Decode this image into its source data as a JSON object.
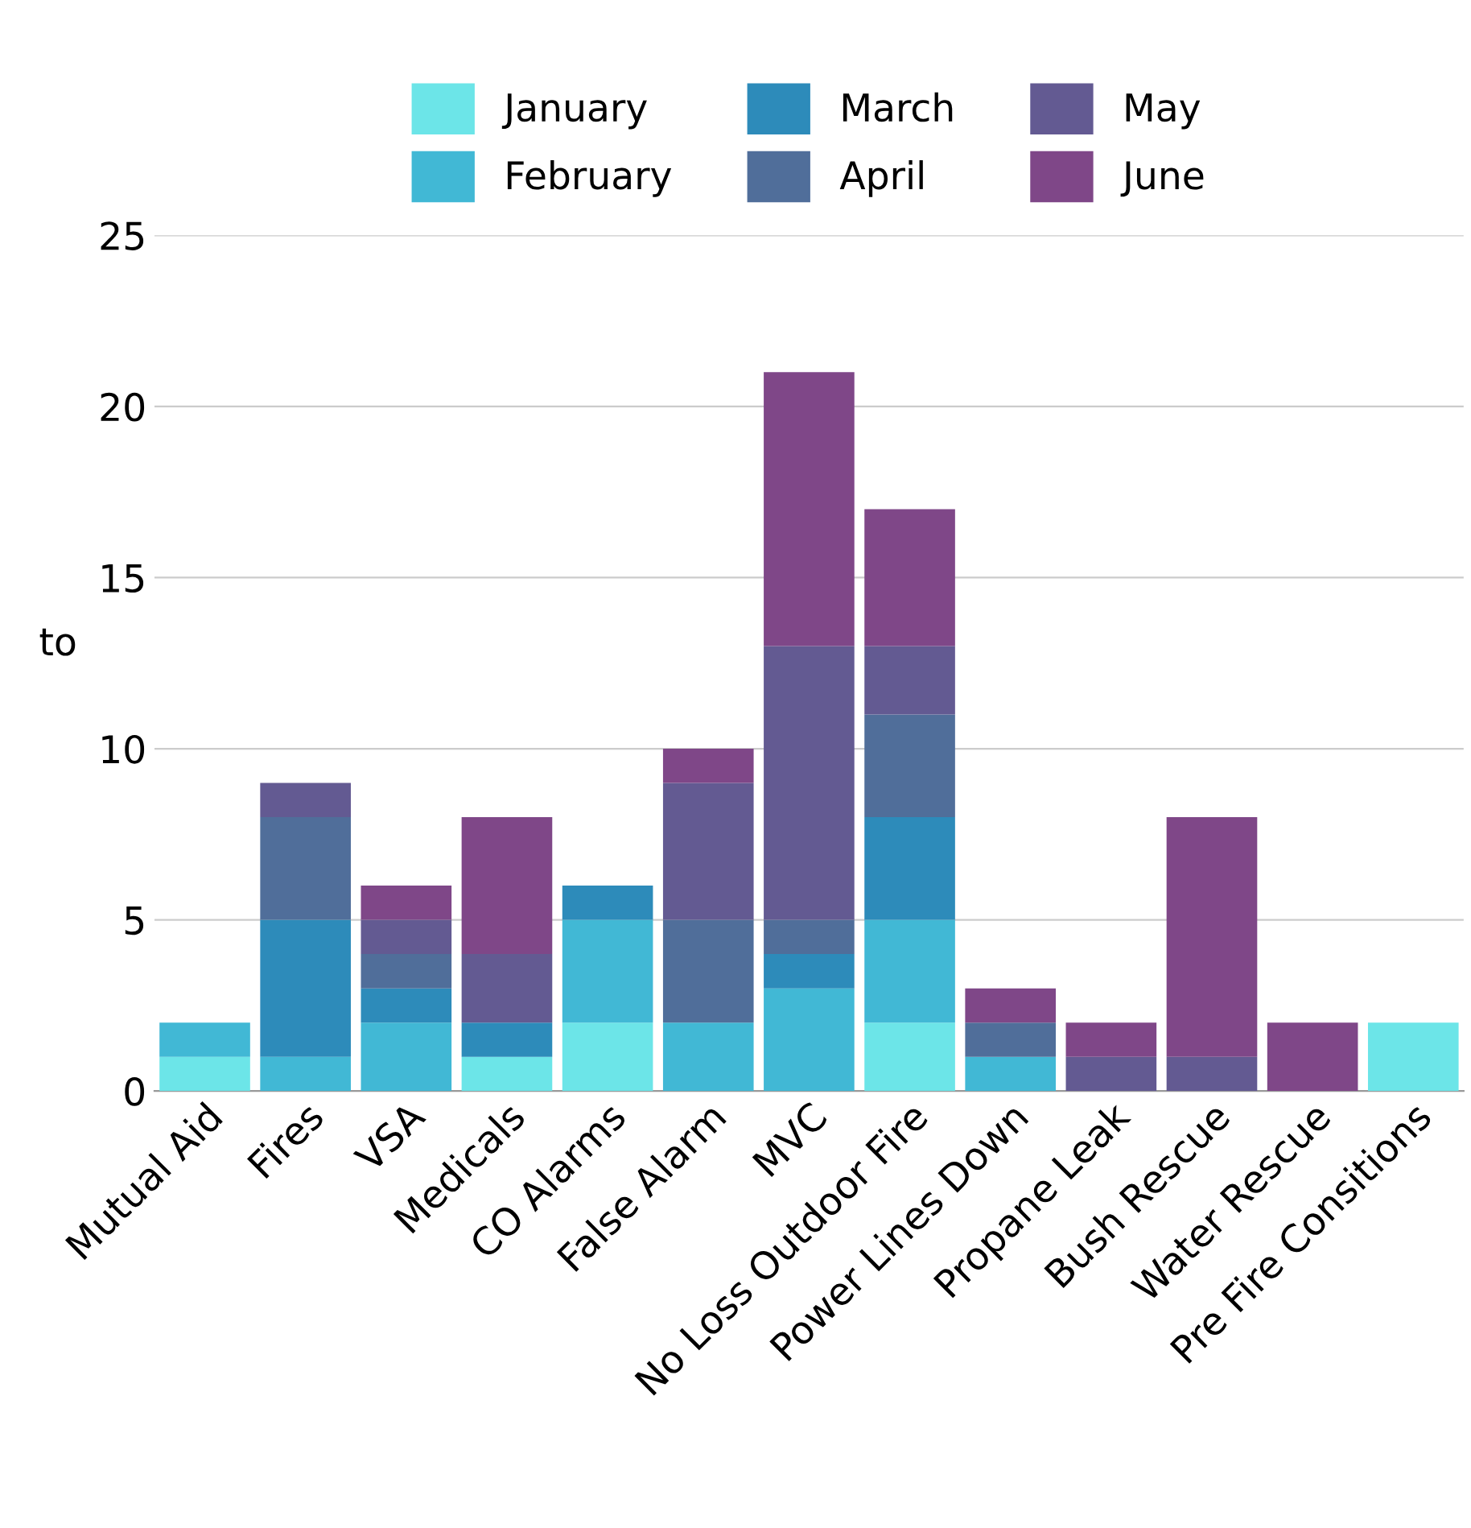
{
  "chart_data": {
    "type": "bar",
    "stacked": true,
    "ylabel": "to",
    "categories": [
      "Mutual Aid",
      "Fires",
      "VSA",
      "Medicals",
      "CO Alarms",
      "False Alarm",
      "MVC",
      "No Loss Outdoor Fire",
      "Power Lines Down",
      "Propane Leak",
      "Bush Rescue",
      "Water Rescue",
      "Pre Fire Consitions"
    ],
    "series": [
      {
        "name": "January",
        "color": "#6ce5e8",
        "values": [
          1,
          0,
          0,
          1,
          2,
          0,
          0,
          2,
          0,
          0,
          0,
          0,
          2
        ]
      },
      {
        "name": "February",
        "color": "#41b8d5",
        "values": [
          1,
          1,
          2,
          0,
          3,
          2,
          3,
          3,
          1,
          0,
          0,
          0,
          0
        ]
      },
      {
        "name": "March",
        "color": "#2d8bba",
        "values": [
          0,
          4,
          1,
          1,
          1,
          0,
          1,
          3,
          0,
          0,
          0,
          0,
          0
        ]
      },
      {
        "name": "April",
        "color": "#506e9a",
        "values": [
          0,
          3,
          1,
          0,
          0,
          3,
          1,
          3,
          1,
          0,
          0,
          0,
          0
        ]
      },
      {
        "name": "May",
        "color": "#635a92",
        "values": [
          0,
          1,
          1,
          2,
          0,
          4,
          8,
          2,
          0,
          1,
          1,
          0,
          0
        ]
      },
      {
        "name": "June",
        "color": "#7f4788",
        "values": [
          0,
          0,
          1,
          4,
          0,
          1,
          8,
          4,
          1,
          1,
          7,
          2,
          0
        ]
      }
    ],
    "ylim": [
      0,
      25
    ],
    "yticks": [
      0,
      5,
      10,
      15,
      20,
      25
    ],
    "grid": "y",
    "legend": "top"
  }
}
